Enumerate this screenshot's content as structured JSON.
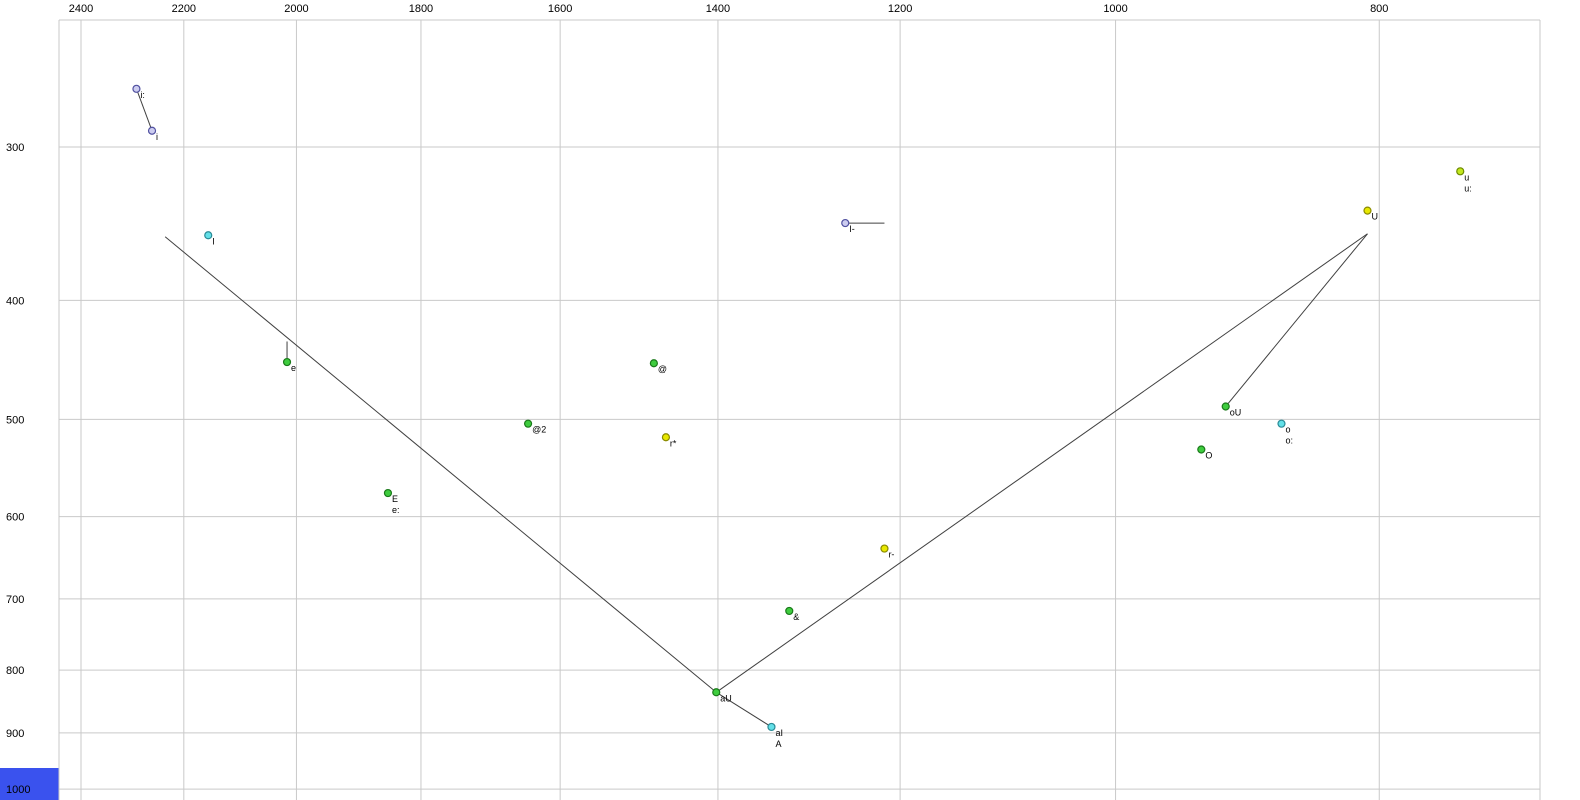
{
  "chart_data": {
    "type": "scatter",
    "title": "",
    "xlabel": "",
    "ylabel": "",
    "x_axis": {
      "ticks": [
        2400,
        2200,
        2000,
        1800,
        1600,
        1400,
        1200,
        1000,
        800
      ],
      "scale": "log",
      "reversed": true,
      "position": "top",
      "range": [
        2450,
        760
      ]
    },
    "y_axis": {
      "ticks": [
        300,
        400,
        500,
        600,
        700,
        800,
        900,
        1000
      ],
      "scale": "log",
      "increases_downward": true,
      "position": "left",
      "range": [
        235,
        1025
      ]
    },
    "grid": true,
    "points": [
      {
        "labels": [
          "i:"
        ],
        "f2": 2290,
        "f1": 269,
        "fill": "#ccccf0",
        "stroke": "#5050a0"
      },
      {
        "labels": [
          "i"
        ],
        "f2": 2260,
        "f1": 291,
        "fill": "#ccccf0",
        "stroke": "#5050a0"
      },
      {
        "labels": [
          "I"
        ],
        "f2": 2155,
        "f1": 354,
        "fill": "#63e0e8",
        "stroke": "#2a8a96"
      },
      {
        "labels": [
          "I-"
        ],
        "f2": 1257,
        "f1": 346,
        "fill": "#ccccf0",
        "stroke": "#5050a0"
      },
      {
        "labels": [
          "u",
          "u:"
        ],
        "f2": 747,
        "f1": 314,
        "fill": "#c2e81e",
        "stroke": "#6e8a00"
      },
      {
        "labels": [
          "U"
        ],
        "f2": 808,
        "f1": 338,
        "fill": "#e8e800",
        "stroke": "#8a8a00"
      },
      {
        "labels": [
          "e"
        ],
        "f2": 2016,
        "f1": 449,
        "fill": "#3ecc3e",
        "stroke": "#1a7a1a"
      },
      {
        "labels": [
          "@"
        ],
        "f2": 1478,
        "f1": 450,
        "fill": "#3ecc3e",
        "stroke": "#1a7a1a"
      },
      {
        "labels": [
          "@2"
        ],
        "f2": 1644,
        "f1": 504,
        "fill": "#3ecc3e",
        "stroke": "#1a7a1a"
      },
      {
        "labels": [
          "r*"
        ],
        "f2": 1463,
        "f1": 517,
        "fill": "#e8e800",
        "stroke": "#8a8a00"
      },
      {
        "labels": [
          "oU"
        ],
        "f2": 911,
        "f1": 488,
        "fill": "#3ecc3e",
        "stroke": "#1a7a1a"
      },
      {
        "labels": [
          "o",
          "o:"
        ],
        "f2": 869,
        "f1": 504,
        "fill": "#63e0e8",
        "stroke": "#2a8a96"
      },
      {
        "labels": [
          "O"
        ],
        "f2": 930,
        "f1": 529,
        "fill": "#3ecc3e",
        "stroke": "#1a7a1a"
      },
      {
        "labels": [
          "E",
          "e:"
        ],
        "f2": 1851,
        "f1": 574,
        "fill": "#3ecc3e",
        "stroke": "#1a7a1a"
      },
      {
        "labels": [
          "r-"
        ],
        "f2": 1216,
        "f1": 637,
        "fill": "#e8e800",
        "stroke": "#8a8a00"
      },
      {
        "labels": [
          "&"
        ],
        "f2": 1318,
        "f1": 716,
        "fill": "#3ecc3e",
        "stroke": "#1a7a1a"
      },
      {
        "labels": [
          "aU"
        ],
        "f2": 1402,
        "f1": 834,
        "fill": "#3ecc3e",
        "stroke": "#1a7a1a"
      },
      {
        "labels": [
          "aI",
          "A"
        ],
        "f2": 1338,
        "f1": 890,
        "fill": "#63e0e8",
        "stroke": "#2a8a96"
      }
    ],
    "segments": [
      {
        "name": "i-long-to-i",
        "pts": [
          [
            2290,
            269
          ],
          [
            2260,
            291
          ]
        ]
      },
      {
        "name": "I-bar-tick",
        "pts": [
          [
            1257,
            346
          ],
          [
            1216,
            346
          ]
        ]
      },
      {
        "name": "e-tick",
        "pts": [
          [
            2016,
            432
          ],
          [
            2016,
            449
          ]
        ]
      },
      {
        "name": "front-diagonal",
        "pts": [
          [
            2235,
            355
          ],
          [
            1402,
            834
          ]
        ]
      },
      {
        "name": "aU-to-U",
        "pts": [
          [
            1402,
            834
          ],
          [
            808,
            353
          ]
        ]
      },
      {
        "name": "oU-to-U",
        "pts": [
          [
            911,
            488
          ],
          [
            808,
            353
          ]
        ]
      },
      {
        "name": "aU-to-aI",
        "pts": [
          [
            1402,
            834
          ],
          [
            1338,
            890
          ]
        ]
      }
    ],
    "colors": {
      "background": "#ffffff",
      "grid": "#c9c9c9",
      "segment": "#404040",
      "tick_text": "#000000",
      "label_text": "#000000",
      "corner": "#3a52ee"
    }
  }
}
